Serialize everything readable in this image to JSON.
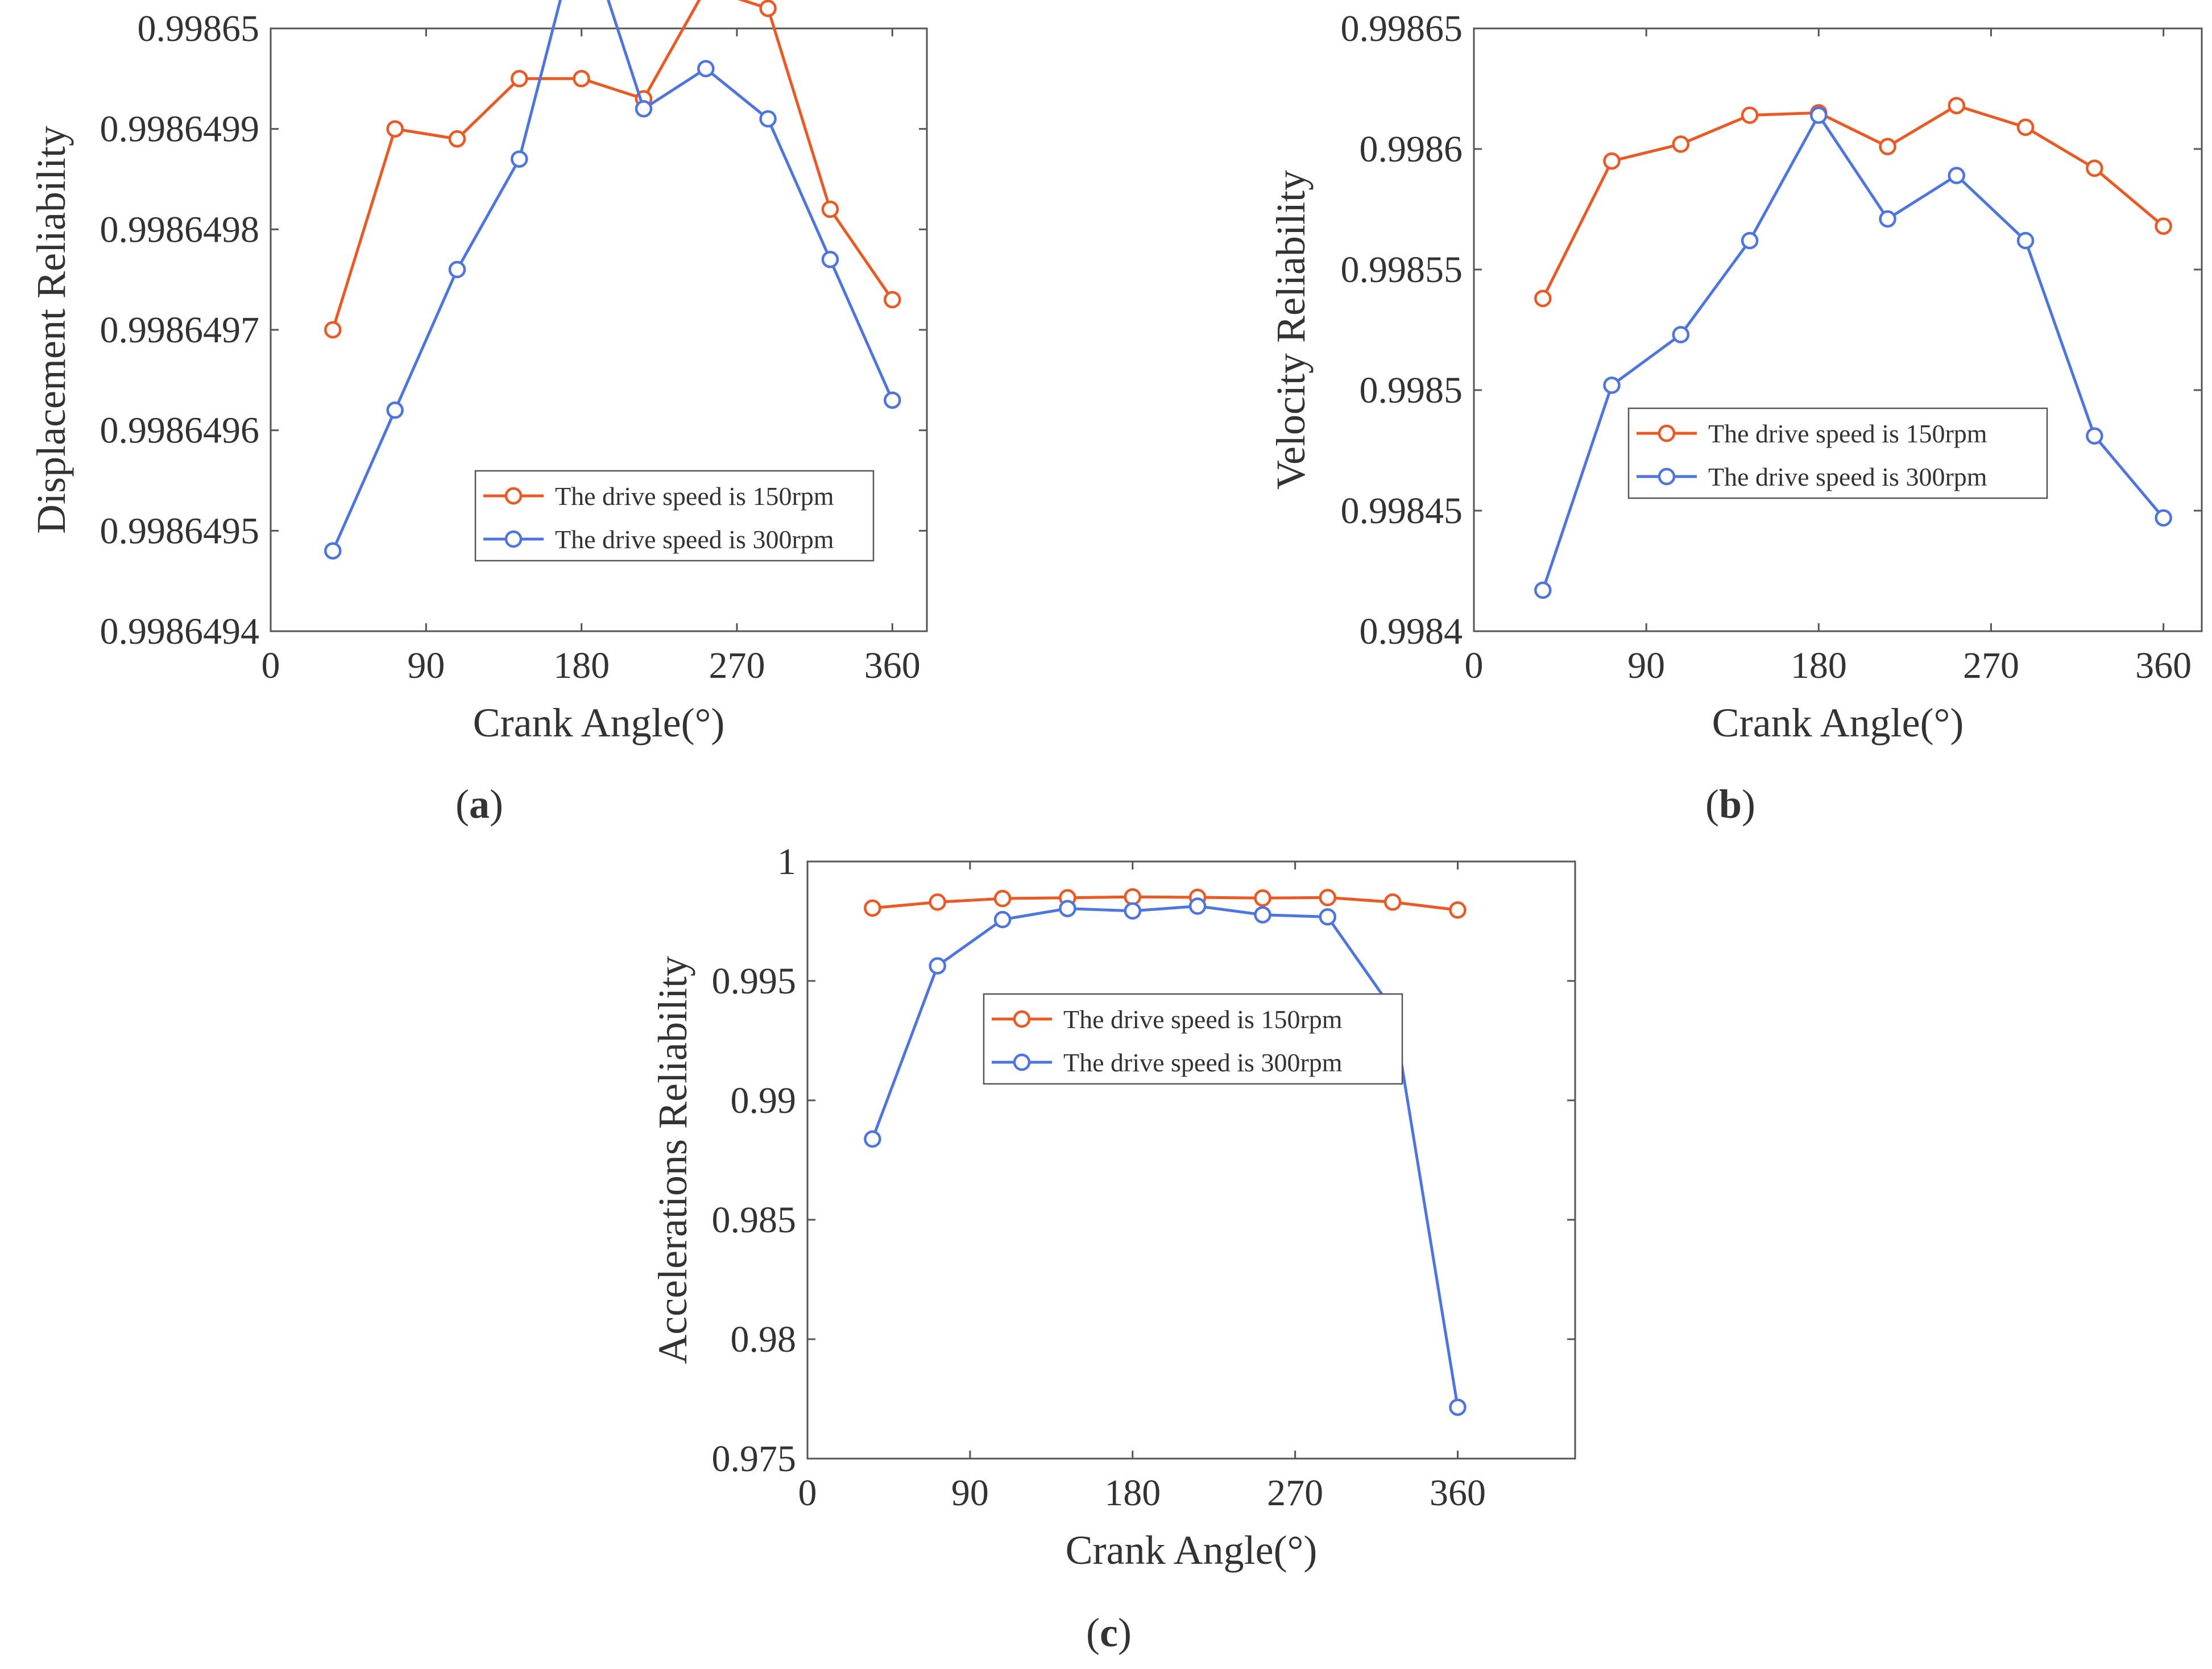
{
  "figure": {
    "colors": {
      "s150": "#f0561d",
      "s300": "#4b75e6",
      "axis": "#555555",
      "text": "#333333"
    }
  },
  "chart_data": [
    {
      "type": "line",
      "panel": "a",
      "caption": {
        "open": "(",
        "letter": "a",
        "close": ")"
      },
      "title": "",
      "xlabel": "Crank Angle(°)",
      "ylabel": "Displacement Reliability",
      "xlim": [
        0,
        380
      ],
      "ylim": [
        0.9986494,
        0.99865
      ],
      "xticks": [
        0,
        90,
        180,
        270,
        360
      ],
      "xtick_labels": [
        "0",
        "90",
        "180",
        "270",
        "360"
      ],
      "yticks": [
        0.9986494,
        0.9986495,
        0.9986496,
        0.9986497,
        0.9986498,
        0.9986499,
        0.99865
      ],
      "ytick_labels": [
        "0.9986494",
        "0.9986495",
        "0.9986496",
        "0.9986497",
        "0.9986498",
        "0.9986499",
        "0.99865"
      ],
      "legend_position": "lower-right",
      "x": [
        36,
        72,
        108,
        144,
        180,
        216,
        252,
        288,
        324,
        360
      ],
      "series": [
        {
          "name": "The drive speed is 150rpm",
          "color": "#f0561d",
          "values": [
            0.9986497,
            0.9986499,
            0.99864989,
            0.99864995,
            0.99864995,
            0.99864993,
            0.99865004,
            0.99865002,
            0.99864982,
            0.99864973
          ]
        },
        {
          "name": "The drive speed is 300rpm",
          "color": "#4b75e6",
          "values": [
            0.99864948,
            0.99864962,
            0.99864976,
            0.99864987,
            0.99865011,
            0.99864992,
            0.99864996,
            0.99864991,
            0.99864977,
            0.99864963
          ]
        }
      ]
    },
    {
      "type": "line",
      "panel": "b",
      "caption": {
        "open": "(",
        "letter": "b",
        "close": ")"
      },
      "title": "",
      "xlabel": "Crank Angle(°)",
      "ylabel": "Velocity Reliability",
      "xlim": [
        0,
        380
      ],
      "ylim": [
        0.9984,
        0.99865
      ],
      "xticks": [
        0,
        90,
        180,
        270,
        360
      ],
      "xtick_labels": [
        "0",
        "90",
        "180",
        "270",
        "360"
      ],
      "yticks": [
        0.9984,
        0.99845,
        0.9985,
        0.99855,
        0.9986,
        0.99865
      ],
      "ytick_labels": [
        "0.9984",
        "0.99845",
        "0.9985",
        "0.99855",
        "0.9986",
        "0.99865"
      ],
      "legend_position": "center-right",
      "x": [
        36,
        72,
        108,
        144,
        180,
        216,
        252,
        288,
        324,
        360
      ],
      "series": [
        {
          "name": "The drive speed is 150rpm",
          "color": "#f0561d",
          "values": [
            0.998538,
            0.998595,
            0.998602,
            0.998614,
            0.998615,
            0.998601,
            0.998618,
            0.998609,
            0.998592,
            0.998568
          ]
        },
        {
          "name": "The drive speed is 300rpm",
          "color": "#4b75e6",
          "values": [
            0.998417,
            0.998502,
            0.998523,
            0.998562,
            0.998614,
            0.998571,
            0.998589,
            0.998562,
            0.998481,
            0.998447
          ]
        }
      ]
    },
    {
      "type": "line",
      "panel": "c",
      "caption": {
        "open": "(",
        "letter": "c",
        "close": ")"
      },
      "title": "",
      "xlabel": "Crank Angle(°)",
      "ylabel": "Accelerations Reliability",
      "xlim": [
        0,
        425
      ],
      "ylim": [
        0.975,
        1
      ],
      "xticks": [
        0,
        90,
        180,
        270,
        360
      ],
      "xtick_labels": [
        "0",
        "90",
        "180",
        "270",
        "360"
      ],
      "yticks": [
        0.975,
        0.98,
        0.985,
        0.99,
        0.995,
        1
      ],
      "ytick_labels": [
        "0.975",
        "0.98",
        "0.985",
        "0.99",
        "0.995",
        "1"
      ],
      "legend_position": "upper-center",
      "x": [
        36,
        72,
        108,
        144,
        180,
        216,
        252,
        288,
        324,
        360
      ],
      "series": [
        {
          "name": "The drive speed is 150rpm",
          "color": "#f0561d",
          "values": [
            0.99805,
            0.9983,
            0.99845,
            0.99848,
            0.99852,
            0.9985,
            0.99847,
            0.99849,
            0.9983,
            0.99797
          ]
        },
        {
          "name": "The drive speed is 300rpm",
          "color": "#4b75e6",
          "values": [
            0.98838,
            0.99563,
            0.99757,
            0.99803,
            0.99793,
            0.99813,
            0.99777,
            0.99768,
            0.9938,
            0.97715
          ]
        }
      ]
    }
  ]
}
